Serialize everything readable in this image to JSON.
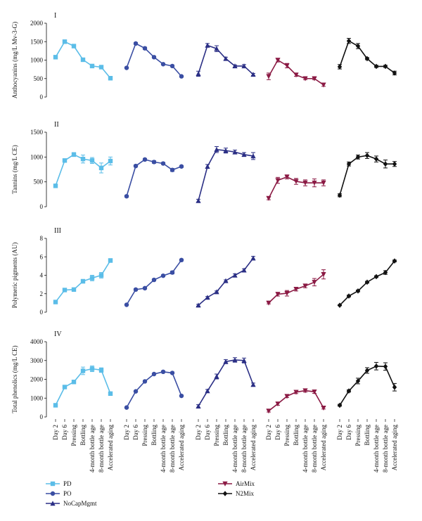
{
  "chart_data": {
    "type": "line",
    "categories": [
      "Day 2",
      "Day 6",
      "Pressing",
      "Bottling",
      "4-month bottle age",
      "8-month bottle age",
      "Accelerated aging"
    ],
    "series_styles": [
      {
        "name": "PD",
        "color": "#5bbde8",
        "marker": "square"
      },
      {
        "name": "PO",
        "color": "#3a4ea3",
        "marker": "circle"
      },
      {
        "name": "NoCapMgmt",
        "color": "#2b2f85",
        "marker": "triangle-up"
      },
      {
        "name": "AirMix",
        "color": "#8b1a44",
        "marker": "triangle-down"
      },
      {
        "name": "N2Mix",
        "color": "#111111",
        "marker": "diamond"
      }
    ],
    "panels": [
      {
        "label": "I",
        "ylabel": "Anthocyanins (mg/L Mv-3-G)",
        "ylim": [
          0,
          2000
        ],
        "yticks": [
          0,
          500,
          1000,
          1500,
          2000
        ],
        "series": [
          {
            "name": "PD",
            "values": [
              1080,
              1500,
              1380,
              1010,
              840,
              810,
              510
            ],
            "errors": [
              20,
              30,
              40,
              25,
              20,
              20,
              25
            ]
          },
          {
            "name": "PO",
            "values": [
              790,
              1450,
              1320,
              1080,
              890,
              840,
              560
            ],
            "errors": [
              20,
              25,
              30,
              25,
              20,
              20,
              20
            ]
          },
          {
            "name": "NoCapMgmt",
            "values": [
              630,
              1400,
              1310,
              1040,
              840,
              840,
              610
            ],
            "errors": [
              70,
              50,
              80,
              40,
              30,
              40,
              30
            ]
          },
          {
            "name": "AirMix",
            "values": [
              560,
              1000,
              850,
              600,
              500,
              500,
              330
            ],
            "errors": [
              90,
              50,
              60,
              40,
              30,
              30,
              40
            ]
          },
          {
            "name": "N2Mix",
            "values": [
              820,
              1520,
              1380,
              1040,
              830,
              830,
              650
            ],
            "errors": [
              60,
              70,
              70,
              30,
              30,
              30,
              50
            ]
          }
        ]
      },
      {
        "label": "II",
        "ylabel": "Tannins (mg/L CE)",
        "ylim": [
          0,
          1500
        ],
        "yticks": [
          0,
          500,
          1000,
          1500
        ],
        "series": [
          {
            "name": "PD",
            "values": [
              420,
              930,
              1050,
              960,
              930,
              780,
              920
            ],
            "errors": [
              30,
              30,
              40,
              80,
              60,
              100,
              80
            ]
          },
          {
            "name": "PO",
            "values": [
              210,
              820,
              950,
              900,
              870,
              740,
              810
            ],
            "errors": [
              20,
              20,
              20,
              25,
              20,
              30,
              20
            ]
          },
          {
            "name": "NoCapMgmt",
            "values": [
              120,
              810,
              1150,
              1130,
              1100,
              1050,
              1020
            ],
            "errors": [
              30,
              40,
              60,
              50,
              40,
              40,
              70
            ]
          },
          {
            "name": "AirMix",
            "values": [
              170,
              530,
              600,
              510,
              480,
              480,
              480
            ],
            "errors": [
              30,
              60,
              40,
              60,
              60,
              80,
              60
            ]
          },
          {
            "name": "N2Mix",
            "values": [
              230,
              860,
              1000,
              1030,
              960,
              860,
              860
            ],
            "errors": [
              30,
              40,
              40,
              60,
              60,
              80,
              50
            ]
          }
        ]
      },
      {
        "label": "III",
        "ylabel": "Polymeric pigments (AU)",
        "ylim": [
          0,
          8
        ],
        "yticks": [
          0,
          2,
          4,
          6,
          8
        ],
        "series": [
          {
            "name": "PD",
            "values": [
              1.1,
              2.4,
              2.45,
              3.35,
              3.7,
              4.0,
              5.6
            ],
            "errors": [
              0.1,
              0.1,
              0.1,
              0.2,
              0.3,
              0.3,
              0.2
            ]
          },
          {
            "name": "PO",
            "values": [
              0.8,
              2.45,
              2.6,
              3.5,
              3.95,
              4.3,
              5.65
            ],
            "errors": [
              0.05,
              0.1,
              0.1,
              0.1,
              0.1,
              0.15,
              0.1
            ]
          },
          {
            "name": "NoCapMgmt",
            "values": [
              0.75,
              1.6,
              2.2,
              3.4,
              4.0,
              4.55,
              5.85
            ],
            "errors": [
              0.1,
              0.1,
              0.1,
              0.1,
              0.15,
              0.15,
              0.2
            ]
          },
          {
            "name": "AirMix",
            "values": [
              1.0,
              1.95,
              2.05,
              2.5,
              2.85,
              3.25,
              4.1
            ],
            "errors": [
              0.1,
              0.2,
              0.3,
              0.2,
              0.2,
              0.4,
              0.5
            ]
          },
          {
            "name": "N2Mix",
            "values": [
              0.75,
              1.75,
              2.3,
              3.25,
              3.85,
              4.3,
              5.55
            ],
            "errors": [
              0.05,
              0.1,
              0.1,
              0.1,
              0.1,
              0.2,
              0.1
            ]
          }
        ]
      },
      {
        "label": "IV",
        "ylabel": "Total phenolics (mg/L CE)",
        "ylim": [
          0,
          4000
        ],
        "yticks": [
          0,
          1000,
          2000,
          3000,
          4000
        ],
        "series": [
          {
            "name": "PD",
            "values": [
              620,
              1590,
              1860,
              2450,
              2560,
              2490,
              1240
            ],
            "errors": [
              40,
              60,
              80,
              200,
              150,
              120,
              60
            ]
          },
          {
            "name": "PO",
            "values": [
              500,
              1360,
              1890,
              2280,
              2400,
              2340,
              1120
            ],
            "errors": [
              20,
              30,
              40,
              40,
              40,
              40,
              40
            ]
          },
          {
            "name": "NoCapMgmt",
            "values": [
              570,
              1380,
              2150,
              2940,
              3030,
              3000,
              1720
            ],
            "errors": [
              80,
              80,
              130,
              110,
              120,
              130,
              80
            ]
          },
          {
            "name": "AirMix",
            "values": [
              320,
              700,
              1100,
              1320,
              1400,
              1340,
              480
            ],
            "errors": [
              60,
              80,
              70,
              80,
              80,
              90,
              60
            ]
          },
          {
            "name": "N2Mix",
            "values": [
              620,
              1380,
              1910,
              2470,
              2700,
              2680,
              1580
            ],
            "errors": [
              50,
              60,
              150,
              150,
              200,
              200,
              200
            ]
          }
        ]
      }
    ],
    "legend": [
      "PD",
      "PO",
      "NoCapMgmt",
      "AirMix",
      "N2Mix"
    ]
  }
}
